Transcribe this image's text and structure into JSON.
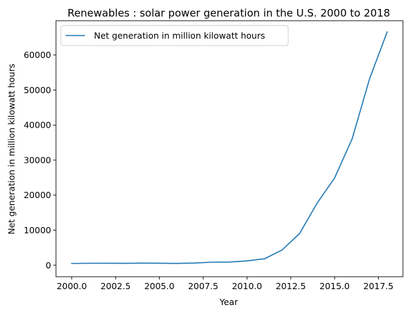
{
  "chart_data": {
    "type": "line",
    "title": "Renewables : solar power generation in the U.S. 2000 to 2018",
    "xlabel": "Year",
    "ylabel": "Net generation in million kilowatt hours",
    "xlim": [
      1999.1,
      2018.9
    ],
    "ylim": [
      -3300,
      69800
    ],
    "x_ticks": [
      2000.0,
      2002.5,
      2005.0,
      2007.5,
      2010.0,
      2012.5,
      2015.0,
      2017.5
    ],
    "x_tick_labels": [
      "2000.0",
      "2002.5",
      "2005.0",
      "2007.5",
      "2010.0",
      "2012.5",
      "2015.0",
      "2017.5"
    ],
    "y_ticks": [
      0,
      10000,
      20000,
      30000,
      40000,
      50000,
      60000
    ],
    "y_tick_labels": [
      "0",
      "10000",
      "20000",
      "30000",
      "40000",
      "50000",
      "60000"
    ],
    "grid": false,
    "legend_position": "upper-left",
    "series": [
      {
        "name": "Net generation in million kilowatt hours",
        "color": "#1f77b4",
        "x": [
          2000,
          2001,
          2002,
          2003,
          2004,
          2005,
          2006,
          2007,
          2008,
          2009,
          2010,
          2011,
          2012,
          2013,
          2014,
          2015,
          2016,
          2017,
          2018
        ],
        "y": [
          493,
          543,
          555,
          534,
          575,
          550,
          508,
          612,
          864,
          891,
          1212,
          1818,
          4327,
          9036,
          17691,
          24893,
          36054,
          53287,
          66604
        ]
      }
    ]
  }
}
